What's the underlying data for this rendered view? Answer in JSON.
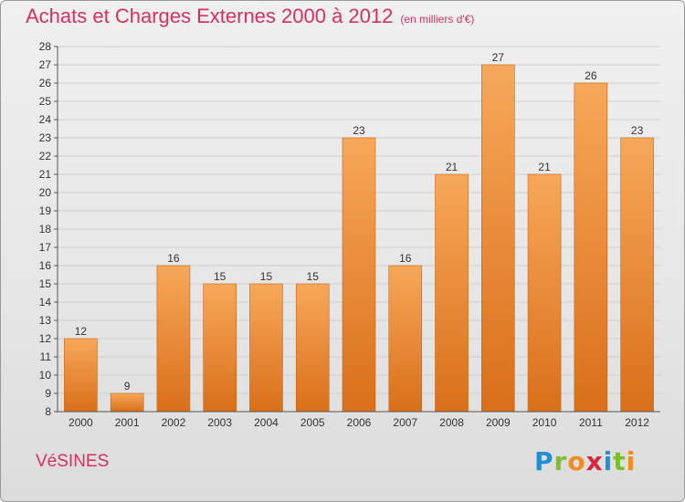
{
  "header": {
    "title": "Achats et Charges Externes 2000 à 2012",
    "unit": "(en milliers d'€)"
  },
  "footer": {
    "commune": "VéSINES",
    "logo_text": "Proxiti",
    "logo_colors": [
      "#1f8fd6",
      "#7bbf2a",
      "#f28c1e",
      "#d7263d",
      "#1f8fd6",
      "#7bbf2a",
      "#f28c1e"
    ]
  },
  "colors": {
    "bar_top": "#f7a85a",
    "bar_bottom": "#d96f1a",
    "bar_edge": "#c86414",
    "grid": "#cfcfcf",
    "axis": "#555555",
    "text": "#333333",
    "accent": "#d9305f"
  },
  "chart_data": {
    "type": "bar",
    "categories": [
      "2000",
      "2001",
      "2002",
      "2003",
      "2004",
      "2005",
      "2006",
      "2007",
      "2008",
      "2009",
      "2010",
      "2011",
      "2012"
    ],
    "values": [
      12,
      9,
      16,
      15,
      15,
      15,
      23,
      16,
      21,
      27,
      21,
      26,
      23
    ],
    "title": "Achats et Charges Externes 2000 à 2012",
    "xlabel": "",
    "ylabel": "",
    "ylim": [
      8,
      28
    ],
    "yticks": [
      8,
      9,
      10,
      11,
      12,
      13,
      14,
      15,
      16,
      17,
      18,
      19,
      20,
      21,
      22,
      23,
      24,
      25,
      26,
      27,
      28
    ],
    "grid": true,
    "data_labels": true
  }
}
